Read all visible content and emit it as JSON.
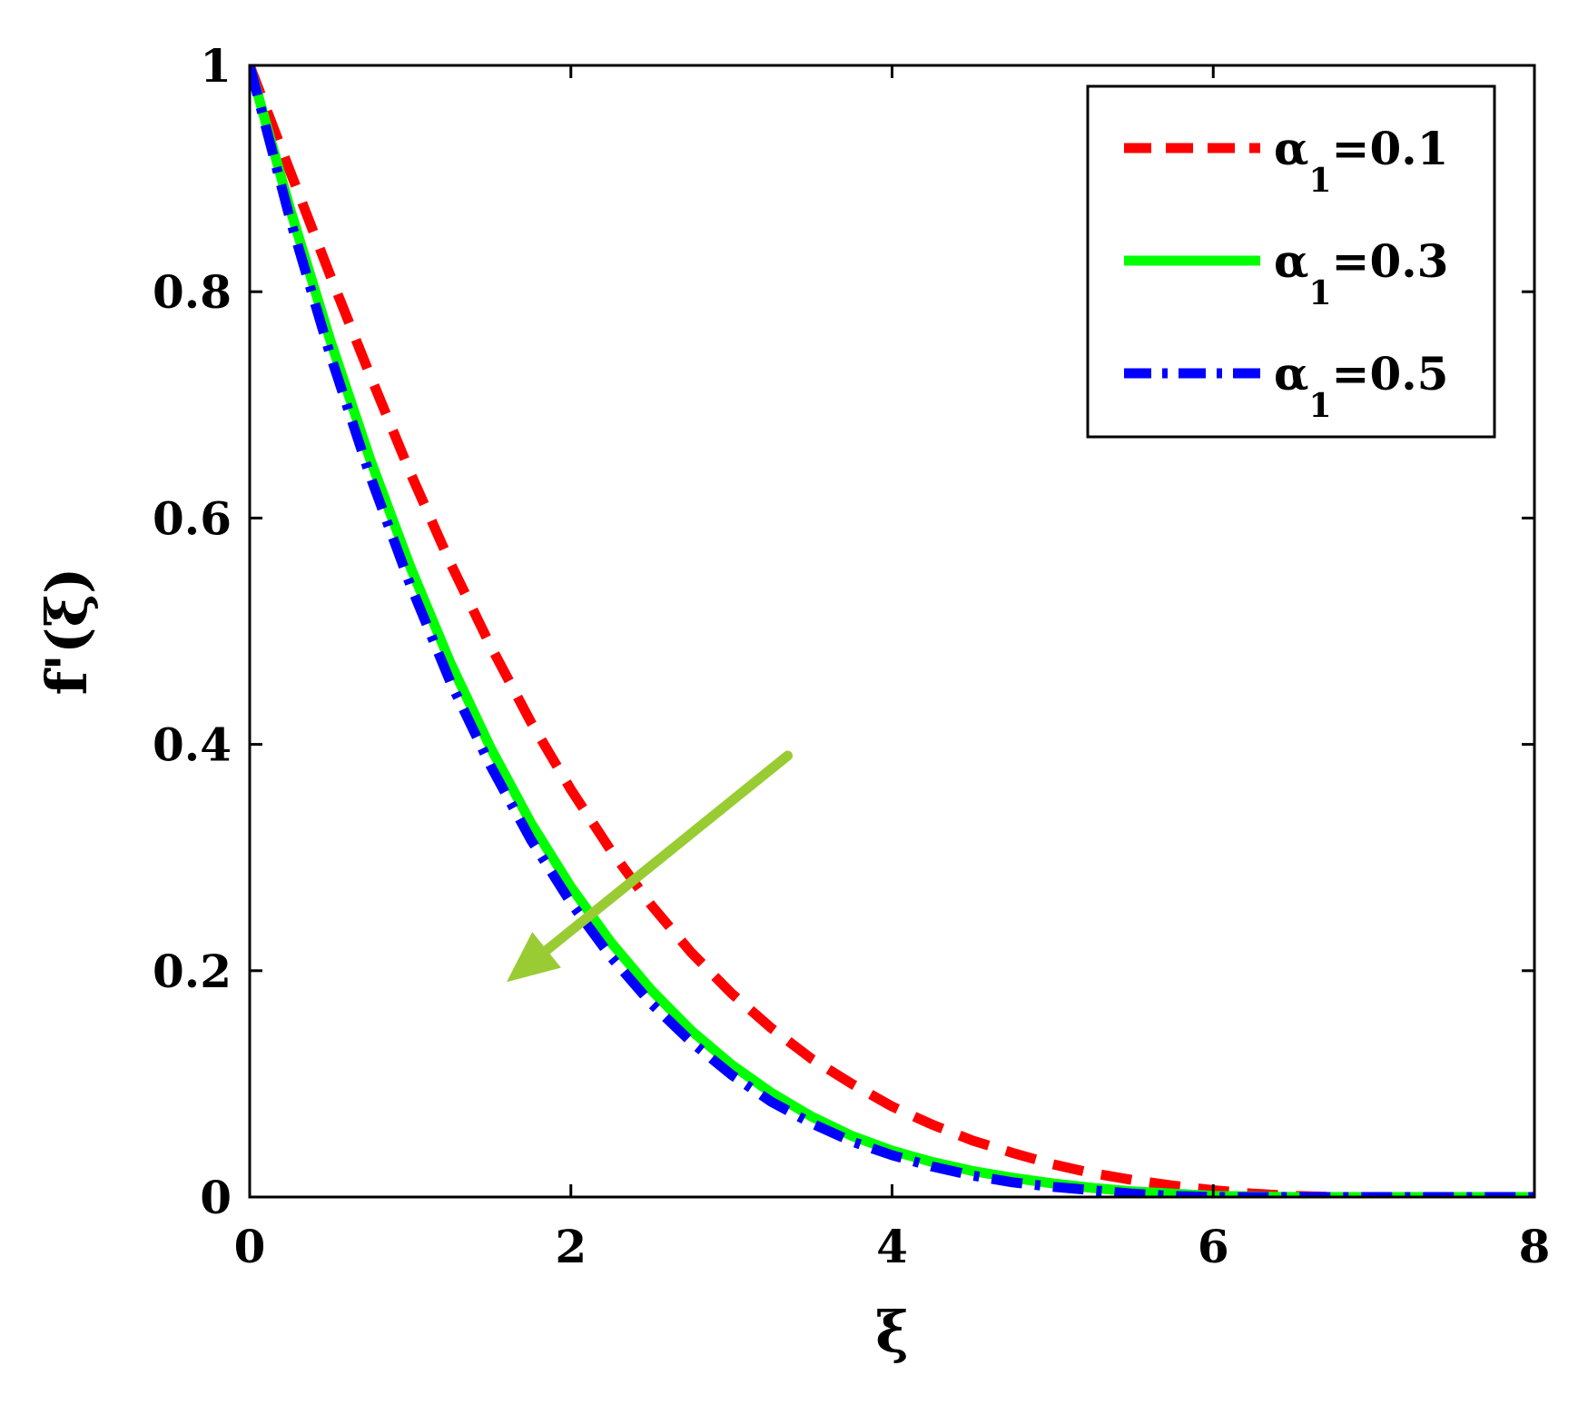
{
  "chart_data": {
    "type": "line",
    "title": "",
    "xlabel": "ξ",
    "ylabel": "f'(ξ)",
    "xlim": [
      0,
      8
    ],
    "ylim": [
      0,
      1
    ],
    "xticks": [
      0,
      2,
      4,
      6,
      8
    ],
    "yticks": [
      0,
      0.2,
      0.4,
      0.6,
      0.8,
      1
    ],
    "xtick_labels": [
      "0",
      "2",
      "4",
      "6",
      "8"
    ],
    "ytick_labels": [
      "0",
      "0.2",
      "0.4",
      "0.6",
      "0.8",
      "1"
    ],
    "grid": false,
    "legend_position": "top-right",
    "series": [
      {
        "name": "α1=0.1",
        "legend_main": "α",
        "legend_sub": "1",
        "legend_value": "=0.1",
        "color": "#ff0000",
        "style": "dashed",
        "x": [
          0,
          0.25,
          0.5,
          0.75,
          1,
          1.25,
          1.5,
          1.75,
          2,
          2.25,
          2.5,
          2.75,
          3,
          3.25,
          3.5,
          3.75,
          4,
          4.25,
          4.5,
          4.75,
          5,
          5.25,
          5.5,
          5.75,
          6,
          6.25,
          6.5,
          6.75,
          7,
          7.5,
          8
        ],
        "y": [
          1,
          0.907,
          0.815,
          0.726,
          0.64,
          0.56,
          0.487,
          0.42,
          0.36,
          0.306,
          0.258,
          0.216,
          0.18,
          0.149,
          0.122,
          0.1,
          0.08,
          0.064,
          0.05,
          0.039,
          0.029,
          0.021,
          0.015,
          0.01,
          0.006,
          0.003,
          0.001,
          0,
          0,
          0,
          0
        ]
      },
      {
        "name": "α1=0.3",
        "legend_main": "α",
        "legend_sub": "1",
        "legend_value": "=0.3",
        "color": "#00ff00",
        "style": "solid",
        "x": [
          0,
          0.25,
          0.5,
          0.75,
          1,
          1.25,
          1.5,
          1.75,
          2,
          2.25,
          2.5,
          2.75,
          3,
          3.25,
          3.5,
          3.75,
          4,
          4.25,
          4.5,
          4.75,
          5,
          5.25,
          5.5,
          5.75,
          6,
          6.5,
          7,
          7.5,
          8
        ],
        "y": [
          1,
          0.874,
          0.758,
          0.652,
          0.557,
          0.472,
          0.397,
          0.331,
          0.274,
          0.225,
          0.183,
          0.147,
          0.117,
          0.092,
          0.071,
          0.054,
          0.041,
          0.031,
          0.023,
          0.017,
          0.012,
          0.008,
          0.005,
          0.003,
          0.001,
          0,
          0,
          0,
          0
        ]
      },
      {
        "name": "α1=0.5",
        "legend_main": "α",
        "legend_sub": "1",
        "legend_value": "=0.5",
        "color": "#0000ff",
        "style": "dashdot",
        "x": [
          0,
          0.25,
          0.5,
          0.75,
          1,
          1.25,
          1.5,
          1.75,
          2,
          2.25,
          2.5,
          2.75,
          3,
          3.25,
          3.5,
          3.75,
          4,
          4.25,
          4.5,
          4.75,
          5,
          5.25,
          5.5,
          5.75,
          6,
          6.5,
          7,
          7.5,
          8
        ],
        "y": [
          1,
          0.865,
          0.745,
          0.637,
          0.541,
          0.455,
          0.381,
          0.316,
          0.26,
          0.212,
          0.171,
          0.137,
          0.108,
          0.084,
          0.065,
          0.049,
          0.037,
          0.027,
          0.019,
          0.013,
          0.009,
          0.006,
          0.003,
          0.001,
          0,
          0,
          0,
          0,
          0
        ]
      }
    ],
    "annotation": {
      "type": "arrow",
      "color": "#99cc33",
      "from": [
        3.35,
        0.39
      ],
      "to": [
        1.6,
        0.19
      ]
    }
  }
}
